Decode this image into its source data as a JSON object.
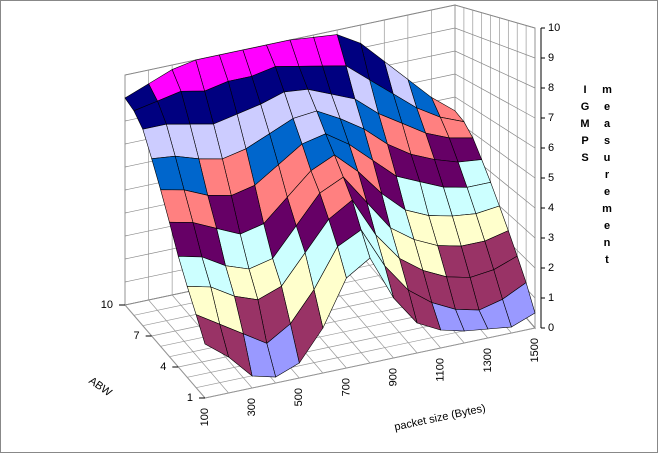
{
  "chart_data": {
    "type": "surface",
    "x_label": "packet size (Bytes)",
    "y_label": "ABW",
    "z_label": "IGMPS measurement",
    "x_categories": [
      "100",
      null,
      "300",
      null,
      "500",
      null,
      "700",
      null,
      "900",
      null,
      "1100",
      null,
      "1300",
      null,
      "1500"
    ],
    "y_categories": [
      "1",
      null,
      null,
      "4",
      null,
      null,
      "7",
      null,
      null,
      "10"
    ],
    "values": [
      [
        1.8,
        1.2,
        0.4,
        0.2,
        0.5,
        1.5,
        3.0,
        3.5,
        2.0,
        1.0,
        0.6,
        0.4,
        0.3,
        0.2,
        0.5
      ],
      [
        2.5,
        2.0,
        1.5,
        1.0,
        1.5,
        2.5,
        3.8,
        4.2,
        2.8,
        1.8,
        1.2,
        0.8,
        0.6,
        0.8,
        1.2
      ],
      [
        3.2,
        3.0,
        2.5,
        2.2,
        2.5,
        3.5,
        4.5,
        5.0,
        3.6,
        2.6,
        2.0,
        1.6,
        1.4,
        1.5,
        1.8
      ],
      [
        4.0,
        3.8,
        3.3,
        3.0,
        3.2,
        4.2,
        5.2,
        5.6,
        4.5,
        3.4,
        2.8,
        2.4,
        2.2,
        2.2,
        2.4
      ],
      [
        5.0,
        4.8,
        4.4,
        4.0,
        4.2,
        5.0,
        5.8,
        6.2,
        5.4,
        4.4,
        3.6,
        3.2,
        3.0,
        2.9,
        3.0
      ],
      [
        6.0,
        5.8,
        5.4,
        5.2,
        5.4,
        6.0,
        6.6,
        6.8,
        6.2,
        5.4,
        4.6,
        4.2,
        3.8,
        3.6,
        3.6
      ],
      [
        7.0,
        6.9,
        6.6,
        6.4,
        6.6,
        7.0,
        7.4,
        7.5,
        7.0,
        6.4,
        5.6,
        5.0,
        4.6,
        4.3,
        4.2
      ],
      [
        8.0,
        8.0,
        7.8,
        7.6,
        7.8,
        8.0,
        8.3,
        8.2,
        7.8,
        7.4,
        6.6,
        6.0,
        5.4,
        5.0,
        4.8
      ],
      [
        8.6,
        8.8,
        9.0,
        8.8,
        9.0,
        9.0,
        9.2,
        9.0,
        8.8,
        8.6,
        7.8,
        7.0,
        6.2,
        5.6,
        5.2
      ],
      [
        9.0,
        9.4,
        9.8,
        10,
        10,
        10,
        10,
        10,
        9.9,
        9.8,
        9.2,
        8.2,
        7.2,
        6.2,
        5.4
      ]
    ],
    "zlim": [
      0,
      10
    ],
    "zticks": [
      0,
      1,
      2,
      3,
      4,
      5,
      6,
      7,
      8,
      9,
      10
    ],
    "band_colors": [
      "#9999ff",
      "#993366",
      "#ffffcc",
      "#ccffff",
      "#660066",
      "#ff8080",
      "#0066cc",
      "#ccccff",
      "#000080",
      "#ff00ff"
    ],
    "grid": true
  }
}
